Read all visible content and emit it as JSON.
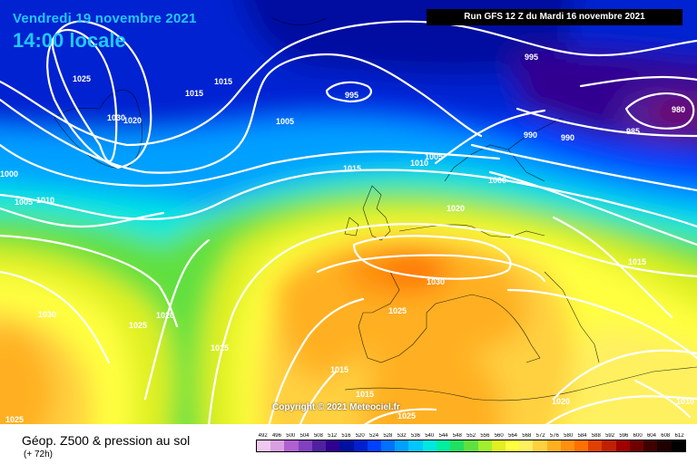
{
  "header": {
    "date": "Vendredi 19 novembre 2021",
    "time": "14:00 locale",
    "run": "Run GFS 12 Z du Mardi 16 novembre 2021"
  },
  "copyright": "Copyright © 2021 Meteociel.fr",
  "legend": {
    "title": "Géop. Z500 & pression au sol",
    "subtitle": "(+ 72h)",
    "scale_values": [
      "492",
      "496",
      "500",
      "504",
      "508",
      "512",
      "516",
      "520",
      "524",
      "528",
      "532",
      "536",
      "540",
      "544",
      "548",
      "552",
      "556",
      "560",
      "564",
      "568",
      "572",
      "576",
      "580",
      "584",
      "588",
      "592",
      "596",
      "600",
      "604",
      "608",
      "612"
    ],
    "scale_colors": [
      "#f0c8f0",
      "#d8a0e0",
      "#b060d0",
      "#8040c0",
      "#5020a0",
      "#300090",
      "#0010a0",
      "#0020d0",
      "#0040ff",
      "#0070ff",
      "#00a0ff",
      "#00c8ff",
      "#00e8e0",
      "#00f0a0",
      "#20e060",
      "#60e040",
      "#a0f030",
      "#e0f020",
      "#ffff40",
      "#fff060",
      "#ffd040",
      "#ffb020",
      "#ff9010",
      "#ff7000",
      "#e04000",
      "#c02000",
      "#a00000",
      "#700000",
      "#400000",
      "#200000",
      "#000000"
    ]
  },
  "isobars": [
    {
      "label": "995"
    },
    {
      "label": "1025"
    },
    {
      "label": "1015"
    },
    {
      "label": "1015"
    },
    {
      "label": "995"
    },
    {
      "label": "1030"
    },
    {
      "label": "1020"
    },
    {
      "label": "1005"
    },
    {
      "label": "980"
    },
    {
      "label": "985"
    },
    {
      "label": "990"
    },
    {
      "label": "990"
    },
    {
      "label": "1000"
    },
    {
      "label": "1005"
    },
    {
      "label": "1010"
    },
    {
      "label": "1015"
    },
    {
      "label": "1005"
    },
    {
      "label": "1010"
    },
    {
      "label": "1000"
    },
    {
      "label": "1020"
    },
    {
      "label": "1015"
    },
    {
      "label": "1030"
    },
    {
      "label": "1030"
    },
    {
      "label": "1025"
    },
    {
      "label": "1020"
    },
    {
      "label": "1025"
    },
    {
      "label": "1015"
    },
    {
      "label": "1015"
    },
    {
      "label": "1015"
    },
    {
      "label": "1020"
    },
    {
      "label": "1025"
    },
    {
      "label": "1025"
    },
    {
      "label": "1010"
    }
  ]
}
